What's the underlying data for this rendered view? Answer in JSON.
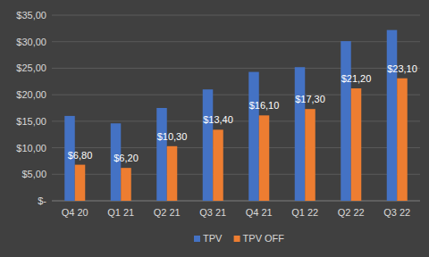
{
  "chart_data": {
    "type": "bar",
    "categories": [
      "Q4 20",
      "Q1 21",
      "Q2 21",
      "Q3 21",
      "Q4 21",
      "Q1 22",
      "Q2 22",
      "Q3 22"
    ],
    "series": [
      {
        "name": "TPV",
        "color": "#4472c4",
        "values": [
          16.0,
          14.6,
          17.5,
          21.0,
          24.3,
          25.2,
          30.1,
          32.2
        ]
      },
      {
        "name": "TPV OFF",
        "color": "#ed7d31",
        "values": [
          6.8,
          6.2,
          10.3,
          13.4,
          16.1,
          17.3,
          21.2,
          23.1
        ],
        "value_labels": [
          "$6,80",
          "$6,20",
          "$10,30",
          "$13,40",
          "$16,10",
          "$17,30",
          "$21,20",
          "$23,10"
        ],
        "data_labels": true
      }
    ],
    "ylim": [
      0,
      35
    ],
    "yticks": [
      {
        "value": 0,
        "label": "$-"
      },
      {
        "value": 5,
        "label": "$5,00"
      },
      {
        "value": 10,
        "label": "$10,00"
      },
      {
        "value": 15,
        "label": "$15,00"
      },
      {
        "value": 20,
        "label": "$20,00"
      },
      {
        "value": 25,
        "label": "$25,00"
      },
      {
        "value": 30,
        "label": "$30,00"
      },
      {
        "value": 35,
        "label": "$35,00"
      }
    ],
    "grid": true,
    "legend": "bottom"
  }
}
